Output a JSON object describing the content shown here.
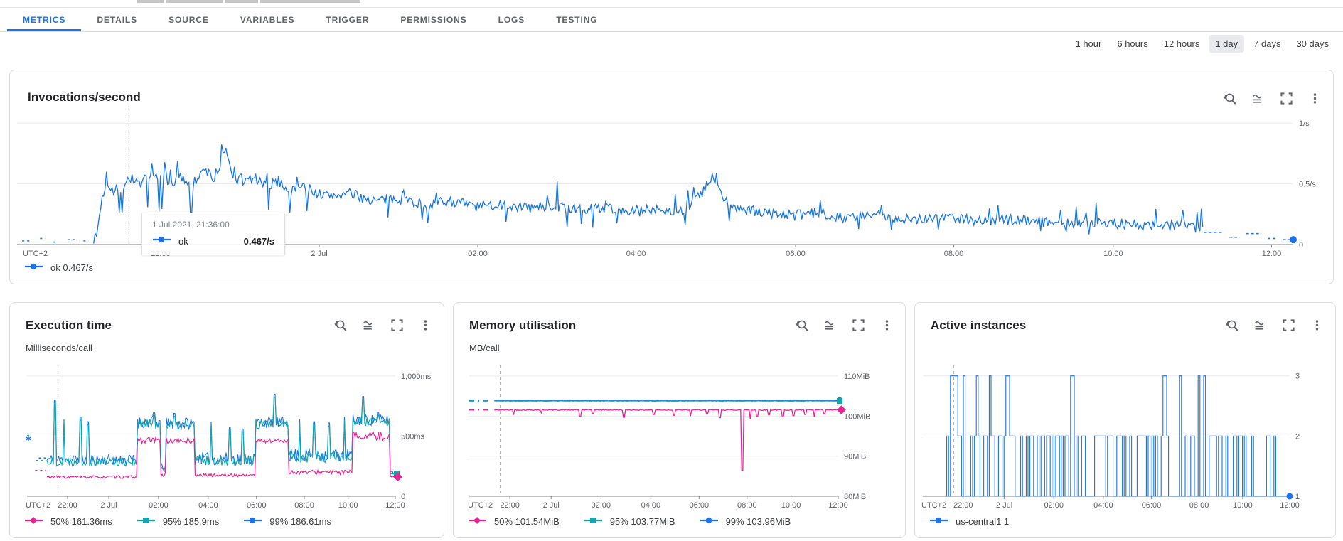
{
  "tabs": {
    "items": [
      "METRICS",
      "DETAILS",
      "SOURCE",
      "VARIABLES",
      "TRIGGER",
      "PERMISSIONS",
      "LOGS",
      "TESTING"
    ],
    "active": "METRICS"
  },
  "time_range": {
    "options": [
      "1 hour",
      "6 hours",
      "12 hours",
      "1 day",
      "7 days",
      "30 days"
    ],
    "selected": "1 day"
  },
  "colors": {
    "accent_blue": "#1a73e8",
    "series_blue": "#1a73e8",
    "series_magenta": "#e52592",
    "series_teal": "#12a4af",
    "grid": "#e8eaed",
    "axis": "#80868b",
    "cursor": "#b0b3b8",
    "label_gray": "#5f6368",
    "selected_chip_bg": "#e8eaed"
  },
  "chart_data": [
    {
      "id": "invocations",
      "type": "line",
      "render": "noisy",
      "title": "Invocations/second",
      "unit": "",
      "ylim": [
        0,
        1.13
      ],
      "yticks": [
        {
          "v": 1,
          "label": "1/s"
        },
        {
          "v": 0.5,
          "label": "0.5/s"
        },
        {
          "v": 0,
          "label": "0"
        }
      ],
      "tz": "UTC+2",
      "xticks": [
        {
          "f": 0.1125,
          "label": "22:00"
        },
        {
          "f": 0.2368,
          "label": "2 Jul"
        },
        {
          "f": 0.361,
          "label": "02:00"
        },
        {
          "f": 0.485,
          "label": "04:00"
        },
        {
          "f": 0.61,
          "label": "06:00"
        },
        {
          "f": 0.734,
          "label": "08:00"
        },
        {
          "f": 0.859,
          "label": "10:00"
        },
        {
          "f": 0.983,
          "label": "12:00"
        }
      ],
      "cursor_f": 0.0877,
      "legend_position": "bottom-left",
      "grid": true,
      "series": [
        {
          "name": "ok",
          "color": "#1a73e8",
          "marker": "circle",
          "jitter": 0.045,
          "solid_from": 0.06,
          "keyframes": [
            [
              0.062,
              0.05
            ],
            [
              0.066,
              0.35
            ],
            [
              0.07,
              0.52
            ],
            [
              0.078,
              0.42
            ],
            [
              0.088,
              0.55
            ],
            [
              0.098,
              0.5
            ],
            [
              0.108,
              0.57
            ],
            [
              0.118,
              0.48
            ],
            [
              0.128,
              0.55
            ],
            [
              0.138,
              0.5
            ],
            [
              0.148,
              0.62
            ],
            [
              0.155,
              0.52
            ],
            [
              0.163,
              0.78
            ],
            [
              0.168,
              0.6
            ],
            [
              0.175,
              0.5
            ],
            [
              0.185,
              0.55
            ],
            [
              0.195,
              0.48
            ],
            [
              0.205,
              0.52
            ],
            [
              0.215,
              0.44
            ],
            [
              0.225,
              0.48
            ],
            [
              0.24,
              0.4
            ],
            [
              0.26,
              0.42
            ],
            [
              0.28,
              0.36
            ],
            [
              0.3,
              0.38
            ],
            [
              0.32,
              0.33
            ],
            [
              0.34,
              0.36
            ],
            [
              0.36,
              0.31
            ],
            [
              0.38,
              0.33
            ],
            [
              0.4,
              0.3
            ],
            [
              0.42,
              0.32
            ],
            [
              0.44,
              0.28
            ],
            [
              0.46,
              0.31
            ],
            [
              0.48,
              0.27
            ],
            [
              0.5,
              0.29
            ],
            [
              0.52,
              0.27
            ],
            [
              0.535,
              0.4
            ],
            [
              0.545,
              0.55
            ],
            [
              0.555,
              0.35
            ],
            [
              0.57,
              0.28
            ],
            [
              0.59,
              0.26
            ],
            [
              0.61,
              0.24
            ],
            [
              0.63,
              0.26
            ],
            [
              0.65,
              0.22
            ],
            [
              0.67,
              0.24
            ],
            [
              0.7,
              0.21
            ],
            [
              0.73,
              0.23
            ],
            [
              0.76,
              0.19
            ],
            [
              0.79,
              0.21
            ],
            [
              0.82,
              0.17
            ],
            [
              0.85,
              0.19
            ],
            [
              0.88,
              0.15
            ],
            [
              0.91,
              0.17
            ],
            [
              0.93,
              0.13
            ]
          ],
          "prefix_marks": [
            [
              0.004,
              0.01,
              0.03
            ],
            [
              0.018,
              0.022,
              0.05
            ],
            [
              0.028,
              0.031,
              0.02
            ],
            [
              0.04,
              0.046,
              0.04
            ],
            [
              0.052,
              0.056,
              0.03
            ]
          ],
          "tail_marks": [
            [
              0.93,
              0.945,
              0.1
            ],
            [
              0.95,
              0.958,
              0.06
            ],
            [
              0.963,
              0.975,
              0.09
            ],
            [
              0.98,
              0.988,
              0.05
            ],
            [
              0.992,
              1.0,
              0.04
            ]
          ],
          "end_value": 0.04,
          "end_dot": true
        }
      ],
      "legend": [
        {
          "shape": "circle",
          "color": "#1a73e8",
          "label": "ok",
          "value": "0.467/s"
        }
      ],
      "tooltip": {
        "date": "1 Jul 2021, 21:36:00",
        "name": "ok",
        "value": "0.467/s"
      }
    },
    {
      "id": "execution-time",
      "type": "line",
      "render": "band",
      "title": "Execution time",
      "unit": "Milliseconds/call",
      "ylim": [
        0,
        1077
      ],
      "yticks": [
        {
          "v": 1000,
          "label": "1,000ms"
        },
        {
          "v": 500,
          "label": "500ms"
        },
        {
          "v": 0,
          "label": "0"
        }
      ],
      "tz": "UTC+2",
      "xticks": [
        {
          "f": 0.11,
          "label": "22:00"
        },
        {
          "f": 0.222,
          "label": "2 Jul"
        },
        {
          "f": 0.357,
          "label": "02:00"
        },
        {
          "f": 0.492,
          "label": "04:00"
        },
        {
          "f": 0.623,
          "label": "06:00"
        },
        {
          "f": 0.753,
          "label": "08:00"
        },
        {
          "f": 0.872,
          "label": "10:00"
        },
        {
          "f": 1.0,
          "label": "12:00"
        }
      ],
      "cursor_f": 0.084,
      "grid": true,
      "colors": {
        "p50": "#e52592",
        "p95": "#12a4af",
        "p99": "#1a73e8"
      },
      "regions": [
        {
          "f0": 0.054,
          "f1": 0.3,
          "p50": 160,
          "p95": 290,
          "j50": 12,
          "j95": 40
        },
        {
          "f0": 0.3,
          "f1": 0.362,
          "p50": 465,
          "p95": 600,
          "j50": 25,
          "j95": 45
        },
        {
          "f0": 0.362,
          "f1": 0.377,
          "p50": 180,
          "p95": 230,
          "j50": 15,
          "j95": 30
        },
        {
          "f0": 0.377,
          "f1": 0.455,
          "p50": 460,
          "p95": 590,
          "j50": 25,
          "j95": 45
        },
        {
          "f0": 0.455,
          "f1": 0.62,
          "p50": 175,
          "p95": 300,
          "j50": 12,
          "j95": 45
        },
        {
          "f0": 0.62,
          "f1": 0.71,
          "p50": 460,
          "p95": 600,
          "j50": 20,
          "j95": 40
        },
        {
          "f0": 0.71,
          "f1": 0.885,
          "p50": 200,
          "p95": 330,
          "j50": 18,
          "j95": 50
        },
        {
          "f0": 0.885,
          "f1": 0.985,
          "p50": 500,
          "p95": 620,
          "j50": 35,
          "j95": 40
        },
        {
          "f0": 0.985,
          "f1": 1.0,
          "p50": 165,
          "p95": 190,
          "j50": 6,
          "j95": 8
        }
      ],
      "spikes": [
        [
          0.075,
          800
        ],
        [
          0.1,
          640
        ],
        [
          0.145,
          660
        ],
        [
          0.165,
          620
        ],
        [
          0.345,
          700
        ],
        [
          0.4,
          690
        ],
        [
          0.43,
          650
        ],
        [
          0.5,
          620
        ],
        [
          0.55,
          570
        ],
        [
          0.585,
          560
        ],
        [
          0.672,
          850
        ],
        [
          0.74,
          640
        ],
        [
          0.78,
          620
        ],
        [
          0.82,
          610
        ],
        [
          0.862,
          660
        ],
        [
          0.912,
          830
        ],
        [
          0.953,
          700
        ]
      ],
      "finals": {
        "p50": 161.36,
        "p95": 185.9,
        "p99": 186.61
      },
      "prefix_marks": {
        "p50": [
          [
            0.0,
            0.008,
            480
          ],
          [
            0.022,
            0.052,
            215
          ]
        ],
        "p95": [
          [
            0.0,
            0.012,
            505
          ],
          [
            0.024,
            0.052,
            298
          ]
        ],
        "p99": [
          [
            0.032,
            0.052,
            318
          ]
        ],
        "star": [
          0.004,
          480
        ]
      },
      "legend": [
        {
          "shape": "diamond",
          "color": "#e52592",
          "label": "50%",
          "value": "161.36ms"
        },
        {
          "shape": "square",
          "color": "#12a4af",
          "label": "95%",
          "value": "185.9ms"
        },
        {
          "shape": "circle",
          "color": "#1a73e8",
          "label": "99%",
          "value": "186.61ms"
        }
      ]
    },
    {
      "id": "memory-utilisation",
      "type": "line",
      "render": "flat",
      "title": "Memory utilisation",
      "unit": "MB/call",
      "ylim": [
        80,
        112.3
      ],
      "yticks": [
        {
          "v": 110,
          "label": "110MiB"
        },
        {
          "v": 100,
          "label": "100MiB"
        },
        {
          "v": 90,
          "label": "90MiB"
        },
        {
          "v": 80,
          "label": "80MiB"
        }
      ],
      "tz": "UTC+2",
      "xticks": [
        {
          "f": 0.11,
          "label": "22:00"
        },
        {
          "f": 0.222,
          "label": "2 Jul"
        },
        {
          "f": 0.357,
          "label": "02:00"
        },
        {
          "f": 0.492,
          "label": "04:00"
        },
        {
          "f": 0.623,
          "label": "06:00"
        },
        {
          "f": 0.753,
          "label": "08:00"
        },
        {
          "f": 0.872,
          "label": "10:00"
        },
        {
          "f": 1.0,
          "label": "12:00"
        }
      ],
      "cursor_f": 0.084,
      "grid": true,
      "solid_from": 0.068,
      "prefix_to": 0.056,
      "series": [
        {
          "name": "99%",
          "color": "#1a73e8",
          "marker": "circle",
          "level": 103.96,
          "noise": 0.04,
          "downticks": []
        },
        {
          "name": "95%",
          "color": "#12a4af",
          "marker": "square",
          "level": 103.77,
          "noise": 0.04,
          "downticks": []
        },
        {
          "name": "50%",
          "color": "#e52592",
          "marker": "diamond",
          "level": 101.54,
          "noise": 0.12,
          "downticks": [
            [
              0.12,
              100.3
            ],
            [
              0.195,
              100.8
            ],
            [
              0.3,
              99.9
            ],
            [
              0.335,
              100.6
            ],
            [
              0.42,
              99.7
            ],
            [
              0.5,
              100.4
            ],
            [
              0.555,
              100.2
            ],
            [
              0.6,
              100.0
            ],
            [
              0.645,
              100.5
            ],
            [
              0.68,
              99.6
            ],
            [
              0.74,
              86.5
            ],
            [
              0.762,
              99.2
            ],
            [
              0.78,
              99.9
            ],
            [
              0.812,
              100.3
            ],
            [
              0.85,
              99.8
            ],
            [
              0.878,
              100.1
            ],
            [
              0.91,
              100.4
            ],
            [
              0.935,
              99.9
            ],
            [
              0.962,
              100.6
            ]
          ]
        }
      ],
      "legend": [
        {
          "shape": "diamond",
          "color": "#e52592",
          "label": "50%",
          "value": "101.54MiB"
        },
        {
          "shape": "square",
          "color": "#12a4af",
          "label": "95%",
          "value": "103.77MiB"
        },
        {
          "shape": "circle",
          "color": "#1a73e8",
          "label": "99%",
          "value": "103.96MiB"
        }
      ]
    },
    {
      "id": "active-instances",
      "type": "line",
      "render": "step",
      "title": "Active instances",
      "unit": "",
      "ylim": [
        1,
        3.15
      ],
      "yticks": [
        {
          "v": 3,
          "label": "3"
        },
        {
          "v": 2,
          "label": "2"
        },
        {
          "v": 1,
          "label": "1"
        }
      ],
      "tz": "UTC+2",
      "xticks": [
        {
          "f": 0.11,
          "label": "22:00"
        },
        {
          "f": 0.222,
          "label": "2 Jul"
        },
        {
          "f": 0.357,
          "label": "02:00"
        },
        {
          "f": 0.492,
          "label": "04:00"
        },
        {
          "f": 0.623,
          "label": "06:00"
        },
        {
          "f": 0.753,
          "label": "08:00"
        },
        {
          "f": 0.872,
          "label": "10:00"
        },
        {
          "f": 1.0,
          "label": "12:00"
        }
      ],
      "cursor_f": 0.084,
      "grid": true,
      "step": {
        "color": "#1a73e8",
        "base_level": 1,
        "start_f": 0.06,
        "spikes3": [
          0.076,
          0.081,
          0.087,
          0.092,
          0.109,
          0.147,
          0.182,
          0.229,
          0.405,
          0.657,
          0.698,
          0.752,
          0.764
        ],
        "pulse_regions": [
          {
            "f0": 0.06,
            "f1": 0.105,
            "duty": 0.75
          },
          {
            "f0": 0.105,
            "f1": 0.23,
            "duty": 0.45
          },
          {
            "f0": 0.23,
            "f1": 0.42,
            "duty": 0.6
          },
          {
            "f0": 0.42,
            "f1": 0.6,
            "duty": 0.55
          },
          {
            "f0": 0.6,
            "f1": 0.67,
            "duty": 0.45
          },
          {
            "f0": 0.67,
            "f1": 0.78,
            "duty": 0.22
          },
          {
            "f0": 0.78,
            "f1": 0.88,
            "duty": 0.5
          },
          {
            "f0": 0.88,
            "f1": 0.96,
            "duty": 0.25
          },
          {
            "f0": 0.96,
            "f1": 1.0,
            "duty": 0.15
          }
        ],
        "end_value": 1,
        "end_dot": true
      },
      "legend": [
        {
          "shape": "circle",
          "color": "#1a73e8",
          "label": "us-central1",
          "value": "1"
        }
      ]
    }
  ]
}
